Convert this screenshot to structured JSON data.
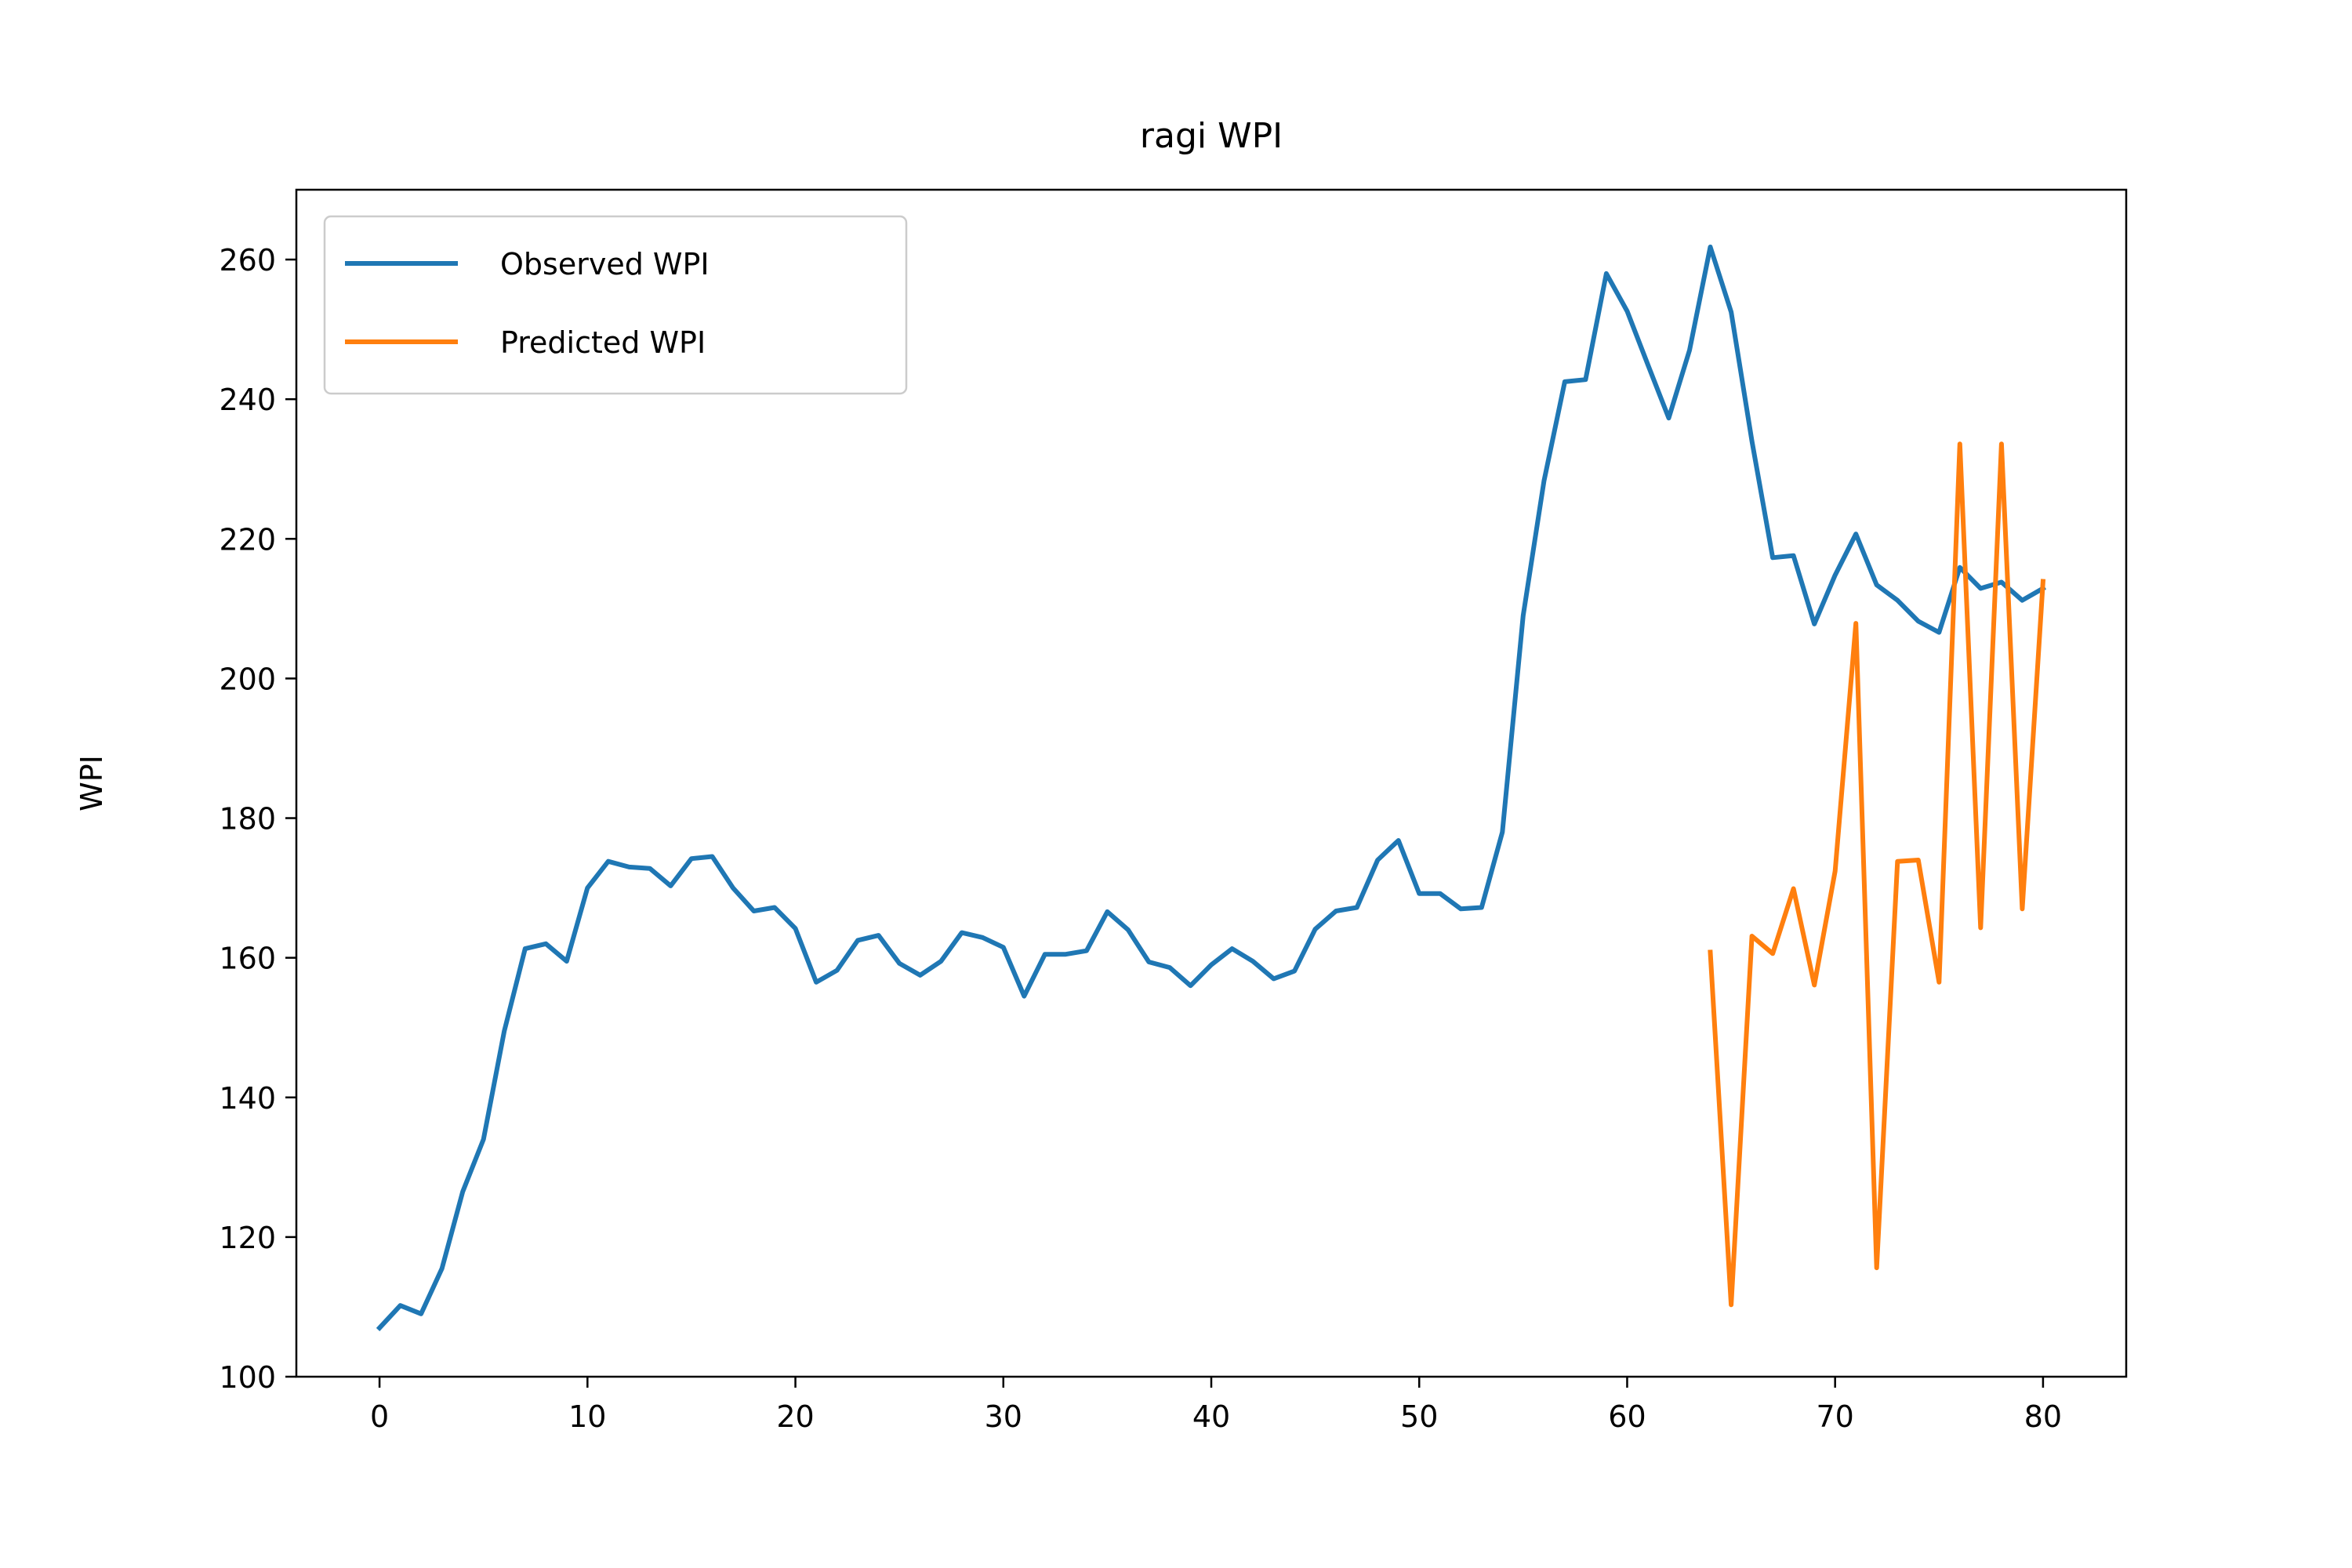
{
  "chart_data": {
    "type": "line",
    "title": "ragi WPI",
    "xlabel": "",
    "ylabel": "WPI",
    "xlim": [
      -4,
      84
    ],
    "ylim": [
      100,
      270
    ],
    "xticks": [
      0,
      10,
      20,
      30,
      40,
      50,
      60,
      70,
      80
    ],
    "yticks": [
      100,
      120,
      140,
      160,
      180,
      200,
      220,
      240,
      260
    ],
    "grid": false,
    "legend_position": "upper left",
    "series": [
      {
        "name": "Observed WPI",
        "color": "#1f77b4",
        "x": [
          0,
          1,
          2,
          3,
          4,
          5,
          6,
          7,
          8,
          9,
          10,
          11,
          12,
          13,
          14,
          15,
          16,
          17,
          18,
          19,
          20,
          21,
          22,
          23,
          24,
          25,
          26,
          27,
          28,
          29,
          30,
          31,
          32,
          33,
          34,
          35,
          36,
          37,
          38,
          39,
          40,
          41,
          42,
          43,
          44,
          45,
          46,
          47,
          48,
          49,
          50,
          51,
          52,
          53,
          54,
          55,
          56,
          57,
          58,
          59,
          60,
          61,
          62,
          63,
          64,
          65,
          66,
          67,
          68,
          69,
          70,
          71,
          72,
          73,
          74,
          75,
          76,
          77,
          78,
          79,
          80
        ],
        "values": [
          107,
          110.2,
          109,
          115.5,
          126.5,
          134,
          149.5,
          161.3,
          162,
          159.5,
          170,
          173.8,
          173,
          172.8,
          170.3,
          174.2,
          174.5,
          170,
          166.7,
          167.2,
          164.2,
          156.5,
          158.2,
          162.5,
          163.2,
          159.2,
          157.5,
          159.5,
          163.6,
          162.9,
          161.5,
          154.5,
          160.5,
          160.5,
          161,
          166.6,
          164,
          159.4,
          158.6,
          156,
          159,
          161.3,
          159.5,
          157,
          158.1,
          164.1,
          166.7,
          167.2,
          174,
          176.8,
          169.2,
          169.2,
          167,
          167.2,
          178,
          209,
          228.3,
          242.5,
          242.8,
          258,
          252.6,
          244.9,
          237.3,
          247,
          261.8,
          252.5,
          234,
          217.3,
          217.6,
          207.8,
          214.8,
          220.7,
          213.4,
          211.2,
          208.2,
          206.6,
          215.9,
          212.9,
          213.8,
          211.2,
          212.9
        ]
      },
      {
        "name": "Predicted WPI",
        "color": "#ff7f0e",
        "x": [
          64,
          65,
          66,
          67,
          68,
          69,
          70,
          71,
          72,
          73,
          74,
          75,
          76,
          77,
          78,
          79,
          80
        ],
        "values": [
          160.8,
          110.3,
          163.1,
          160.6,
          169.9,
          156.1,
          172.4,
          207.9,
          115.6,
          173.8,
          174,
          156.5,
          233.6,
          164.3,
          233.6,
          167,
          213.9
        ]
      }
    ]
  }
}
